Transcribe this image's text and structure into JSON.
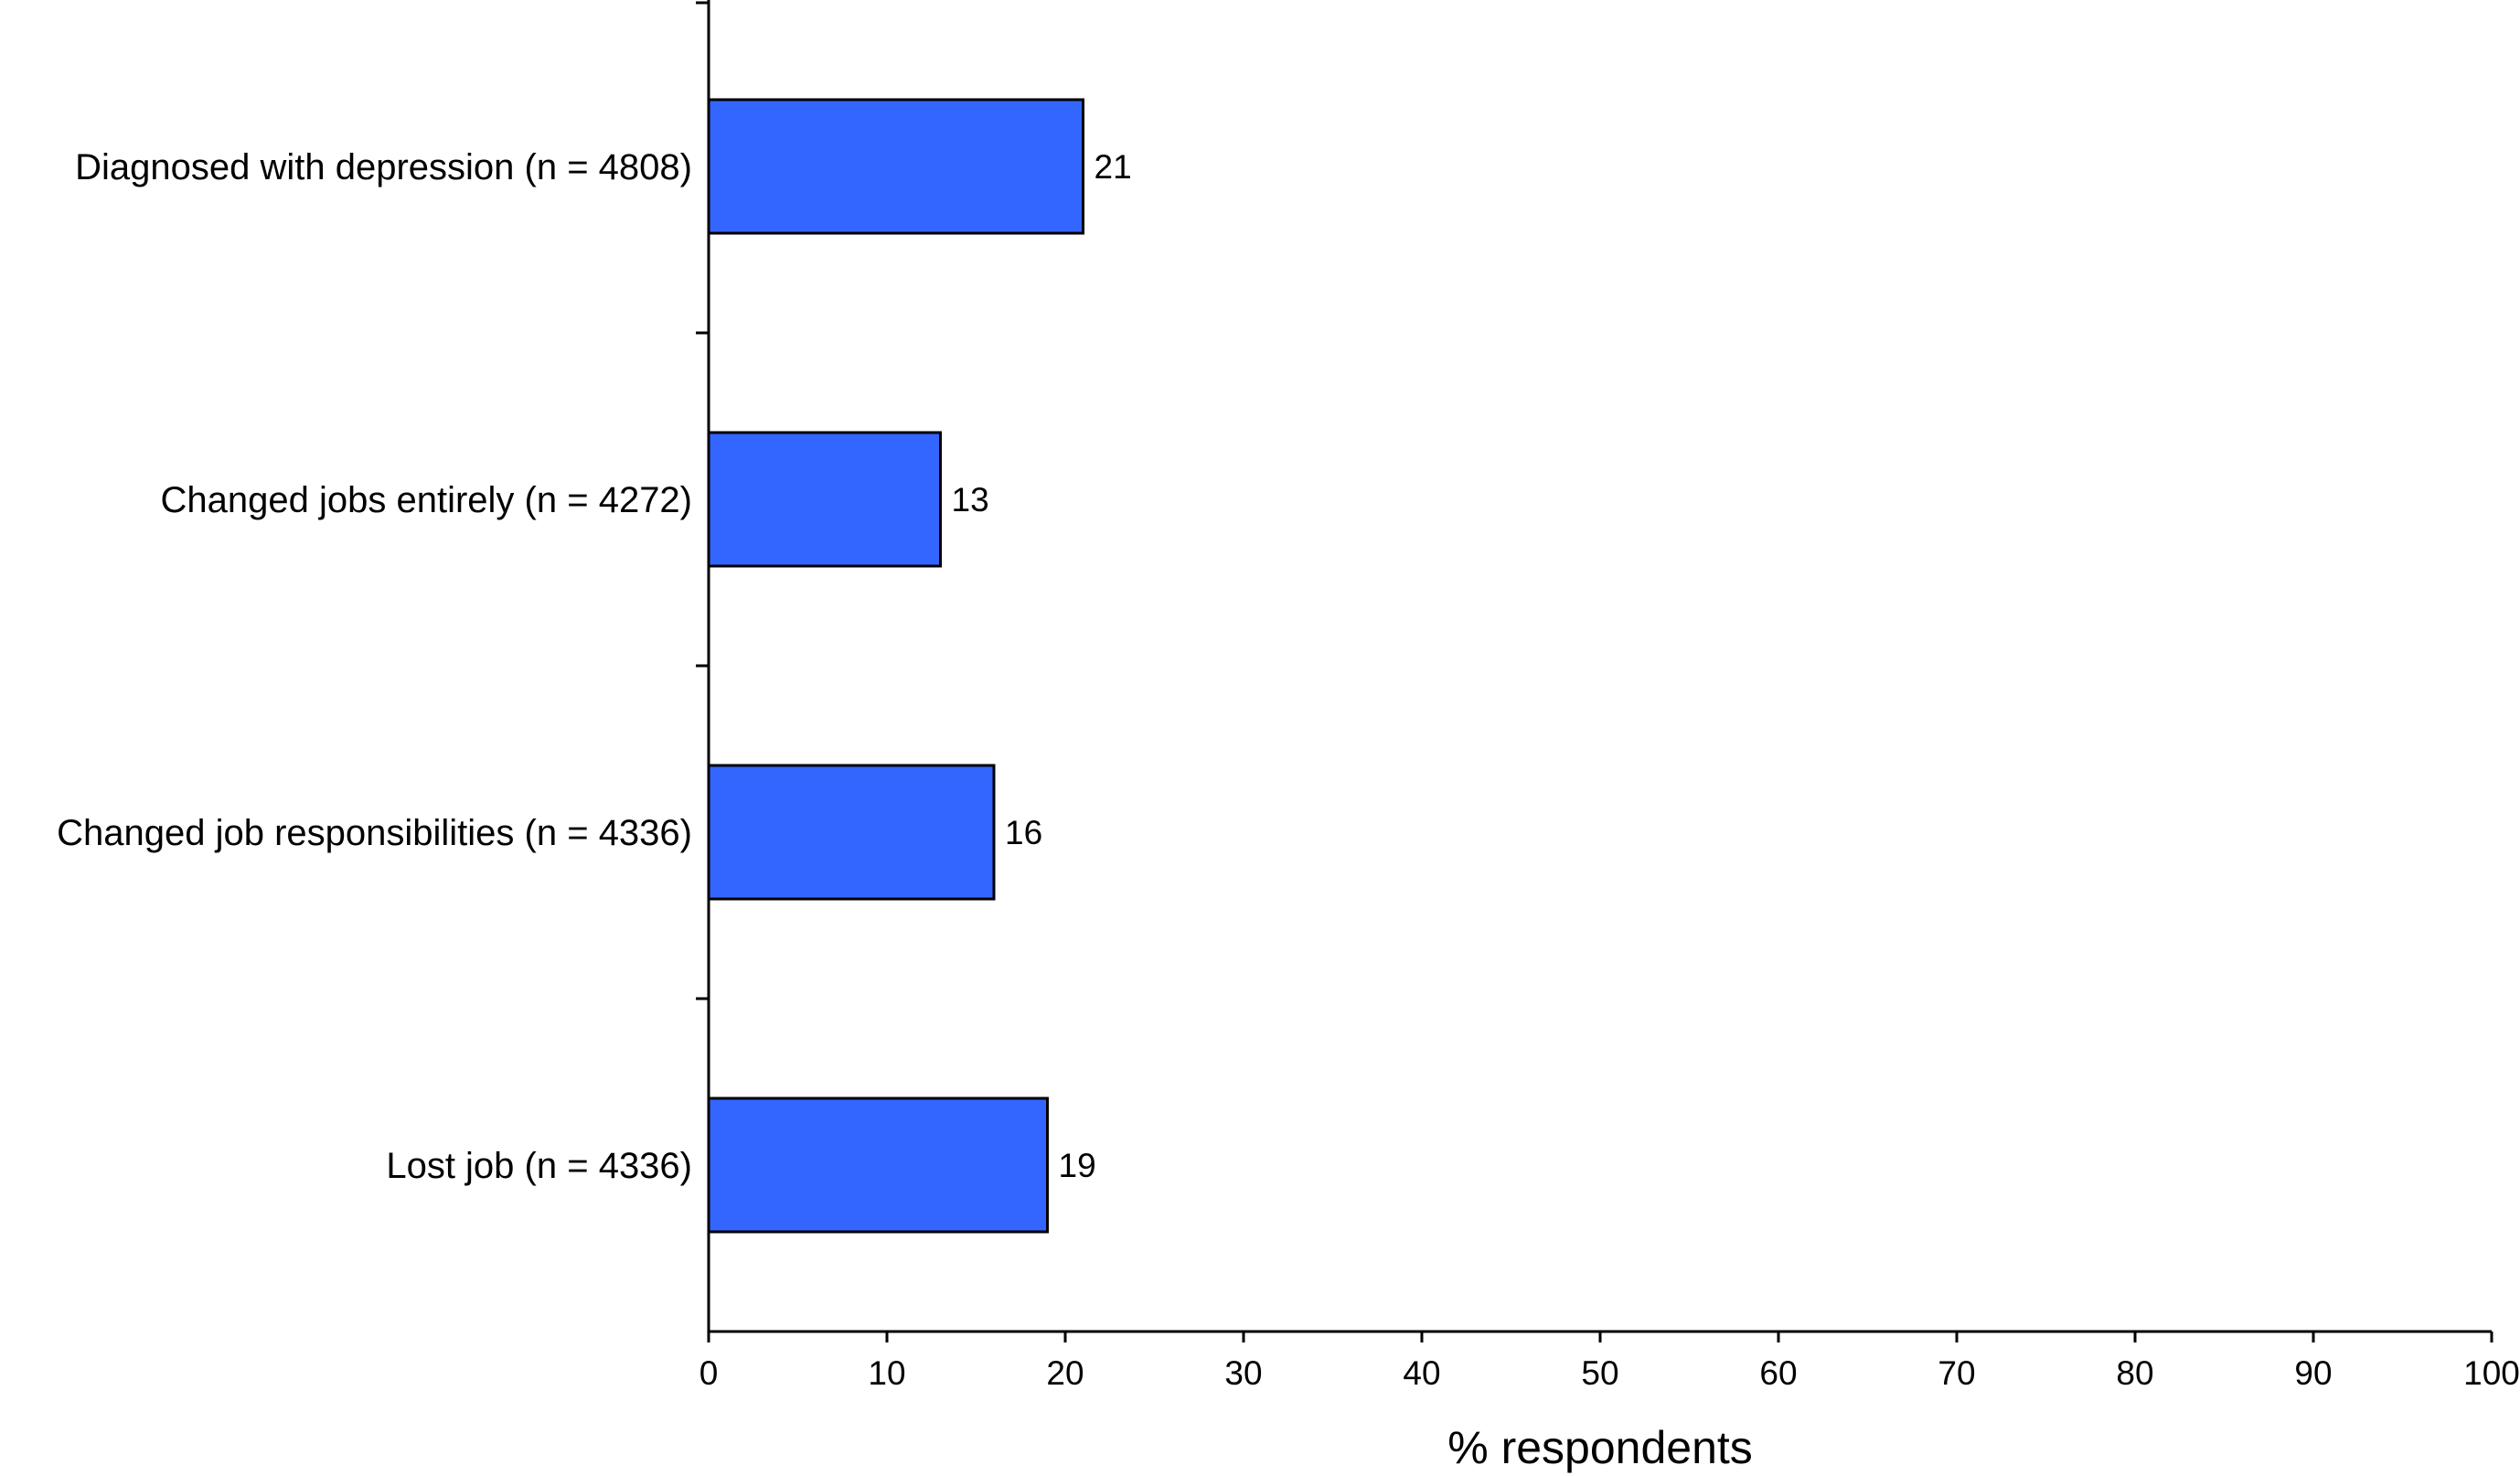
{
  "chart_data": {
    "type": "bar",
    "orientation": "horizontal",
    "categories": [
      "Diagnosed with depression (n = 4808)",
      "Changed jobs entirely (n = 4272)",
      "Changed job responsibilities (n = 4336)",
      "Lost job (n = 4336)"
    ],
    "values": [
      21,
      13,
      16,
      19
    ],
    "value_labels": [
      "21",
      "13",
      "16",
      "19"
    ],
    "xlabel": "% respondents",
    "ylabel": "",
    "xlim": [
      0,
      100
    ],
    "xticks": [
      0,
      10,
      20,
      30,
      40,
      50,
      60,
      70,
      80,
      90,
      100
    ],
    "xtick_labels": [
      "0",
      "10",
      "20",
      "30",
      "40",
      "50",
      "60",
      "70",
      "80",
      "90",
      "100"
    ],
    "grid": false,
    "legend": "none",
    "bar_color": "#3366ff",
    "bar_outline_color": "#000000"
  }
}
